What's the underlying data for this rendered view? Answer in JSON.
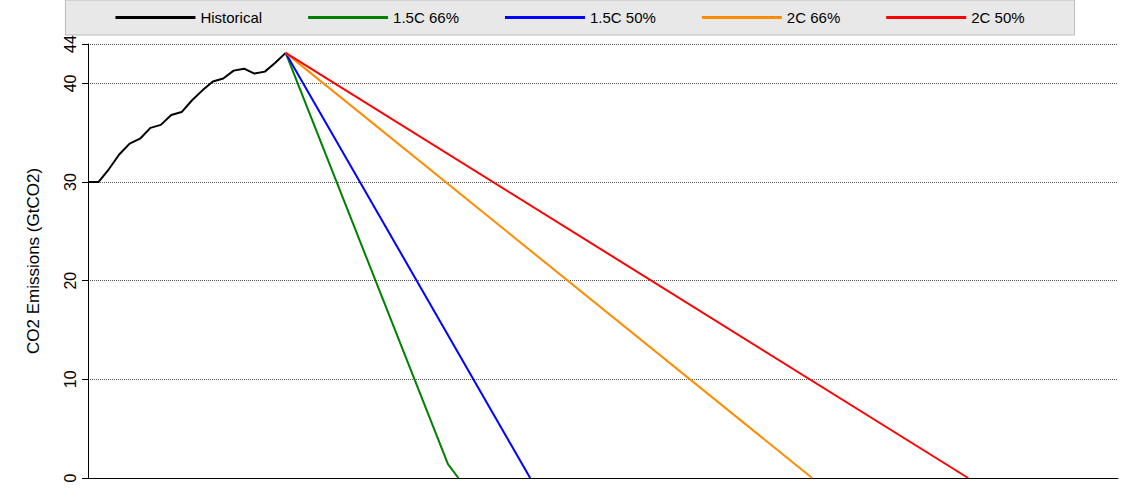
{
  "chart_data": {
    "type": "line",
    "y_label": "CO2 Emissions (GtCO2)",
    "series": [
      {
        "name": "Historical",
        "color": "#000000",
        "x": [
          0,
          1,
          2,
          3,
          4,
          5,
          6,
          7,
          8,
          9,
          10,
          11,
          12,
          13,
          14,
          15,
          16,
          17,
          18,
          19
        ],
        "values": [
          30.0,
          30.0,
          31.3,
          32.8,
          33.9,
          34.4,
          35.5,
          35.8,
          36.8,
          37.1,
          38.3,
          39.3,
          40.2,
          40.5,
          41.3,
          41.5,
          41.0,
          41.2,
          42.1,
          43.1
        ]
      },
      {
        "name": "1.5C 66%",
        "color": "#008000",
        "x": [
          19,
          34.6,
          35.6
        ],
        "values": [
          43.1,
          1.4,
          0
        ]
      },
      {
        "name": "1.5C 50%",
        "color": "#0000ff",
        "x": [
          19,
          42.5
        ],
        "values": [
          43.1,
          0
        ]
      },
      {
        "name": "2C 66%",
        "color": "#ff8c00",
        "x": [
          19,
          69.6
        ],
        "values": [
          43.1,
          0
        ]
      },
      {
        "name": "2C 50%",
        "color": "#ff0000",
        "x": [
          19,
          84.6
        ],
        "values": [
          43.1,
          0
        ]
      }
    ],
    "xlim": [
      0,
      99
    ],
    "ylim": [
      0,
      44
    ],
    "yticks": [
      0,
      10,
      20,
      30,
      40
    ],
    "grid": true,
    "legend": "top",
    "tick_labels": "y"
  }
}
